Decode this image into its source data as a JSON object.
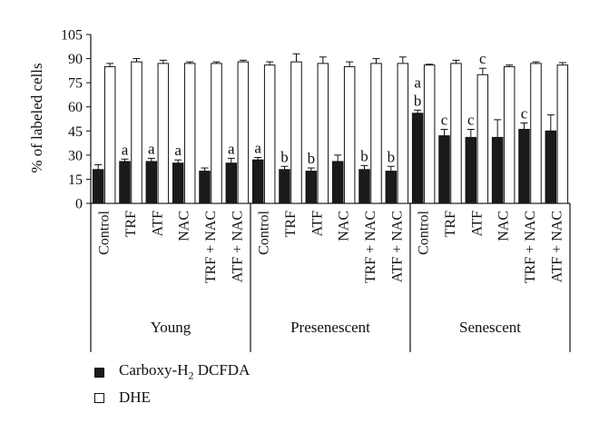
{
  "chart_data": {
    "type": "bar",
    "ylabel": "% of labeled cells",
    "ylim": [
      0,
      105
    ],
    "yticks": [
      "0",
      "15",
      "30",
      "45",
      "60",
      "75",
      "90",
      "105"
    ],
    "grid": false,
    "groups": [
      {
        "name": "Young",
        "categories": [
          "Control",
          "TRF",
          "ATF",
          "NAC",
          "TRF + NAC",
          "ATF + NAC"
        ]
      },
      {
        "name": "Presenescent",
        "categories": [
          "Control",
          "TRF",
          "ATF",
          "NAC",
          "TRF + NAC",
          "ATF + NAC"
        ]
      },
      {
        "name": "Senescent",
        "categories": [
          "Control",
          "TRF",
          "ATF",
          "NAC",
          "TRF + NAC",
          "ATF + NAC"
        ]
      }
    ],
    "series": [
      {
        "name": "Carboxy-H2 DCFDA",
        "name_main": "Carboxy-H",
        "name_sub": "2",
        "name_tail": " DCFDA",
        "color": "#1a1a1a",
        "values": [
          21,
          26,
          26,
          25,
          20,
          25,
          27,
          21,
          20,
          26,
          21,
          20,
          56,
          42,
          41,
          41,
          46,
          45
        ],
        "errors": [
          3,
          1.5,
          2,
          2,
          2,
          3,
          1.5,
          2,
          2,
          4,
          2.5,
          3,
          2,
          4,
          5,
          11,
          4,
          10
        ],
        "labels": [
          "",
          "a",
          "a",
          "a",
          "",
          "a",
          "a",
          "b",
          "b",
          "",
          "b",
          "b",
          "a\nb",
          "c",
          "c",
          "",
          "c",
          ""
        ]
      },
      {
        "name": "DHE",
        "color": "#ffffff",
        "values": [
          85,
          88,
          87,
          87,
          87,
          88,
          86,
          88,
          87,
          85,
          87,
          87,
          86,
          87,
          80,
          85,
          87,
          86
        ],
        "errors": [
          2,
          2,
          2,
          1,
          1,
          1,
          2,
          5,
          4,
          3,
          3,
          4,
          0.5,
          2,
          4,
          1,
          1,
          1.5
        ],
        "labels": [
          "",
          "",
          "",
          "",
          "",
          "",
          "",
          "",
          "",
          "",
          "",
          "",
          "",
          "",
          "c",
          "",
          "",
          ""
        ]
      }
    ]
  },
  "legend": {
    "position": "bottom-left",
    "items": [
      {
        "key": "dcfda",
        "label_main": "Carboxy-H",
        "label_sub": "2",
        "label_tail": " DCFDA",
        "style": "dark"
      },
      {
        "key": "dhe",
        "label": "DHE",
        "style": "light"
      }
    ]
  }
}
